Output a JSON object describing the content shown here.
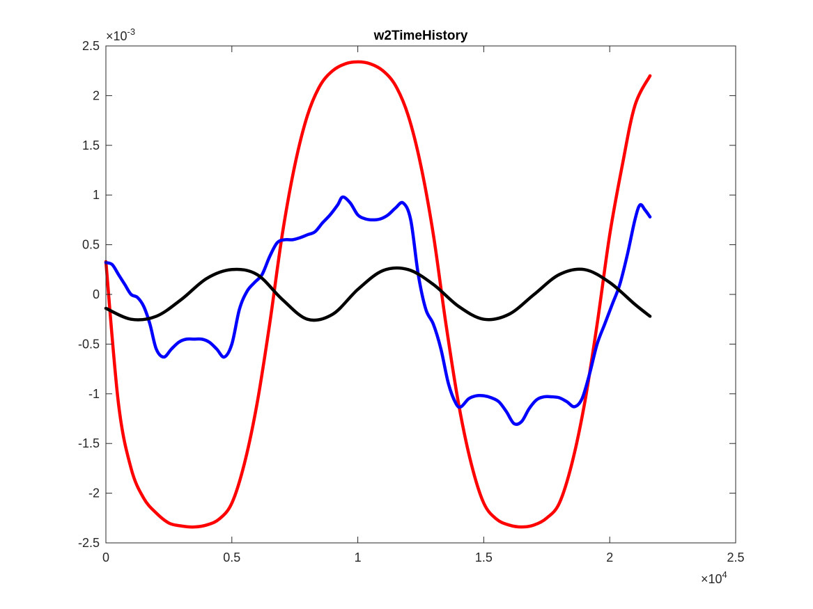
{
  "chart_data": {
    "type": "line",
    "title": "w2TimeHistory",
    "xlabel": "",
    "ylabel": "",
    "xlim": [
      0,
      25000
    ],
    "ylim": [
      -0.0025,
      0.0025
    ],
    "x_ticks": [
      0,
      5000,
      10000,
      15000,
      20000,
      25000
    ],
    "x_tick_labels": [
      "0",
      "0.5",
      "1",
      "1.5",
      "2",
      "2.5"
    ],
    "y_ticks": [
      -0.0025,
      -0.002,
      -0.0015,
      -0.001,
      -0.0005,
      0,
      0.0005,
      0.001,
      0.0015,
      0.002,
      0.0025
    ],
    "y_tick_labels": [
      "-2.5",
      "-2",
      "-1.5",
      "-1",
      "-0.5",
      "0",
      "0.5",
      "1",
      "1.5",
      "2",
      "2.5"
    ],
    "x_exponent": {
      "base": "×10",
      "power": "4"
    },
    "y_exponent": {
      "base": "×10",
      "power": "-3"
    },
    "grid": false,
    "legend": "none",
    "series": [
      {
        "color": "#ff0000",
        "x": [
          0,
          500,
          1000,
          1500,
          2000,
          2500,
          3000,
          3500,
          4000,
          4500,
          5000,
          5500,
          6000,
          6500,
          7000,
          7500,
          8000,
          8500,
          9000,
          9500,
          10000,
          10500,
          11000,
          11500,
          12000,
          12500,
          13000,
          13500,
          14000,
          14500,
          15000,
          15500,
          16000,
          16500,
          17000,
          17500,
          18000,
          18500,
          19000,
          19500,
          20000,
          20500,
          21000,
          21600
        ],
        "y": [
          0.00033,
          -0.0011,
          -0.00175,
          -0.00205,
          -0.0022,
          -0.0023,
          -0.00233,
          -0.00234,
          -0.00232,
          -0.00226,
          -0.0021,
          -0.0017,
          -0.0011,
          -0.0003,
          0.0006,
          0.0013,
          0.0018,
          0.0021,
          0.00225,
          0.00232,
          0.00234,
          0.00232,
          0.00225,
          0.0021,
          0.0018,
          0.0013,
          0.0006,
          -0.0003,
          -0.0011,
          -0.0017,
          -0.0021,
          -0.00226,
          -0.00232,
          -0.00234,
          -0.00232,
          -0.00225,
          -0.0021,
          -0.0017,
          -0.0011,
          -0.0003,
          0.0006,
          0.0013,
          0.0019,
          0.0022
        ]
      },
      {
        "color": "#0000ff",
        "x": [
          0,
          250,
          500,
          750,
          1000,
          1250,
          1500,
          1750,
          2000,
          2300,
          2600,
          2900,
          3200,
          3500,
          3800,
          4100,
          4400,
          4700,
          5000,
          5300,
          5600,
          5900,
          6200,
          6500,
          6800,
          7100,
          7400,
          7700,
          8000,
          8300,
          8600,
          8900,
          9200,
          9400,
          9700,
          10000,
          10300,
          10600,
          10900,
          11200,
          11500,
          11800,
          12100,
          12400,
          12700,
          13000,
          13300,
          13600,
          13900,
          14100,
          14400,
          14700,
          15000,
          15300,
          15600,
          15900,
          16200,
          16500,
          16800,
          17100,
          17400,
          17700,
          18000,
          18300,
          18600,
          18900,
          19200,
          19500,
          19800,
          20100,
          20400,
          20700,
          21000,
          21200,
          21400,
          21600
        ],
        "y": [
          0.00032,
          0.0003,
          0.0002,
          0.0001,
          0.0,
          -3e-05,
          -0.00012,
          -0.0003,
          -0.00055,
          -0.00063,
          -0.00055,
          -0.00048,
          -0.00045,
          -0.00045,
          -0.00045,
          -0.00048,
          -0.00055,
          -0.00063,
          -0.0005,
          -0.00015,
          3e-05,
          0.00012,
          0.0002,
          0.00038,
          0.00052,
          0.00055,
          0.00055,
          0.00057,
          0.0006,
          0.00063,
          0.00072,
          0.0008,
          0.0009,
          0.00098,
          0.00092,
          0.0008,
          0.00076,
          0.00075,
          0.00076,
          0.0008,
          0.00087,
          0.00092,
          0.00075,
          0.0002,
          -0.00015,
          -0.0003,
          -0.00055,
          -0.0009,
          -0.0011,
          -0.00113,
          -0.00105,
          -0.00102,
          -0.00102,
          -0.00104,
          -0.00108,
          -0.00118,
          -0.0013,
          -0.00128,
          -0.00115,
          -0.00106,
          -0.00103,
          -0.00103,
          -0.00104,
          -0.00108,
          -0.00113,
          -0.00105,
          -0.0008,
          -0.0005,
          -0.0003,
          -0.0001,
          0.0001,
          0.0004,
          0.00075,
          0.0009,
          0.00085,
          0.00078
        ]
      },
      {
        "color": "#000000",
        "x": [
          0,
          1000,
          2000,
          3000,
          4000,
          5000,
          6000,
          7000,
          8000,
          9000,
          10000,
          11000,
          12000,
          13000,
          14000,
          15000,
          16000,
          17000,
          18000,
          19000,
          20000,
          21000,
          21600
        ],
        "y": [
          -0.00014,
          -0.00025,
          -0.00022,
          -5e-05,
          0.00016,
          0.00025,
          0.0002,
          -5e-05,
          -0.00025,
          -0.0002,
          5e-05,
          0.00024,
          0.00025,
          0.0001,
          -0.00012,
          -0.00025,
          -0.0002,
          0.0,
          0.0002,
          0.00025,
          0.00012,
          -0.0001,
          -0.00022
        ]
      }
    ]
  }
}
